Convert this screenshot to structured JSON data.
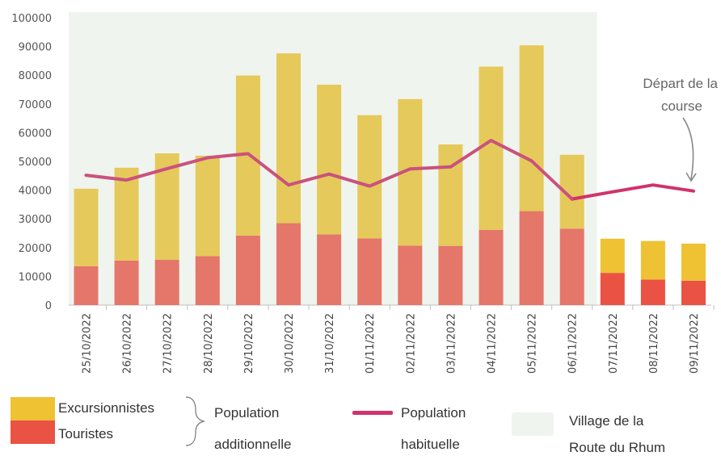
{
  "chart_data": {
    "type": "bar",
    "categories": [
      "25/10/2022",
      "26/10/2022",
      "27/10/2022",
      "28/10/2022",
      "29/10/2022",
      "30/10/2022",
      "31/10/2022",
      "01/11/2022",
      "02/11/2022",
      "03/11/2022",
      "04/11/2022",
      "05/11/2022",
      "06/11/2022",
      "07/11/2022",
      "08/11/2022",
      "09/11/2022"
    ],
    "series": [
      {
        "name": "Touristes",
        "kind": "stacked-bar",
        "values": [
          13500,
          15500,
          15800,
          17000,
          24200,
          28500,
          24600,
          23200,
          20700,
          20600,
          26200,
          32700,
          26600,
          11200,
          8900,
          8500
        ]
      },
      {
        "name": "Excursionnistes",
        "kind": "stacked-bar",
        "values": [
          27000,
          32300,
          37000,
          35000,
          55700,
          59100,
          52100,
          42900,
          51000,
          35300,
          56800,
          57700,
          25700,
          11900,
          13400,
          12900
        ]
      },
      {
        "name": "Population habituelle",
        "kind": "line",
        "values": [
          45200,
          43500,
          47500,
          51300,
          52700,
          41800,
          45600,
          41400,
          47400,
          48100,
          57300,
          50200,
          36900,
          39400,
          41800,
          39700
        ]
      }
    ],
    "highlight_region": {
      "label": "Village de la Route du Rhum",
      "from": "25/10/2022",
      "to": "06/11/2022"
    },
    "annotation": {
      "text_line1": "Départ de la",
      "text_line2": "course",
      "target": "09/11/2022"
    },
    "yticks": [
      "0",
      "10000",
      "20000",
      "30000",
      "40000",
      "50000",
      "60000",
      "70000",
      "80000",
      "90000",
      "100000"
    ],
    "ylim": [
      0,
      100000
    ],
    "colors": {
      "excursionnistes_in": "#e5c95a",
      "excursionnistes_out": "#eec233",
      "touristes_in": "#e5766a",
      "touristes_out": "#ea5244",
      "line": "#d1326b",
      "line_in": "#c9527e",
      "region": "#f0f4ee"
    }
  },
  "legend": {
    "excursionnistes": "Excursionnistes",
    "touristes": "Touristes",
    "additional_line1": "Population",
    "additional_line2": "additionnelle",
    "habituelle_line1": "Population",
    "habituelle_line2": "habituelle",
    "village_line1": "Village de la",
    "village_line2": "Route du Rhum"
  }
}
